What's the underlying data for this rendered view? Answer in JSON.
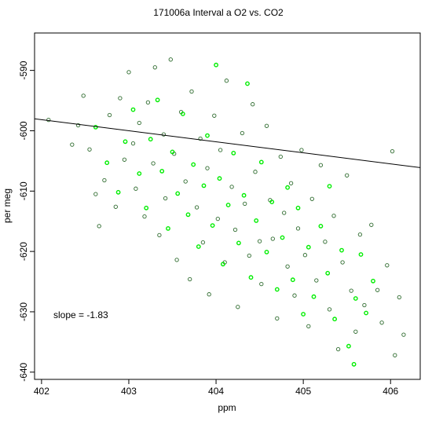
{
  "chart_data": {
    "type": "scatter",
    "title": "171006a   Interval a O2 vs. CO2",
    "xlabel": "ppm",
    "ylabel": "per meg",
    "xlim": [
      401.92,
      406.34
    ],
    "ylim": [
      -641.2,
      -583.8
    ],
    "x_ticks": [
      402,
      403,
      404,
      405,
      406
    ],
    "y_ticks": [
      -590,
      -600,
      -610,
      -620,
      -630,
      -640
    ],
    "x_tick_labels": [
      "402",
      "403",
      "404",
      "405",
      "406"
    ],
    "y_tick_labels": [
      "-590",
      "-600",
      "-610",
      "-620",
      "-630",
      "-640"
    ],
    "annotation": "slope =  -1.83",
    "fit_line": {
      "slope": -1.83,
      "intercept": -600.0,
      "x0": 403.0
    },
    "point_styles": {
      "dark_series_color": "#2e6b2e",
      "green_series_color": "#00ee00",
      "marker": "open-circle"
    },
    "series": [
      {
        "color": "#2e6b2e",
        "points": [
          [
            402.08,
            -598.2
          ],
          [
            402.35,
            -602.3
          ],
          [
            402.42,
            -599.1
          ],
          [
            402.48,
            -594.2
          ],
          [
            402.55,
            -603.1
          ],
          [
            402.62,
            -610.5
          ],
          [
            402.66,
            -615.8
          ],
          [
            402.72,
            -608.2
          ],
          [
            402.78,
            -597.4
          ],
          [
            402.85,
            -612.6
          ],
          [
            402.9,
            -594.6
          ],
          [
            402.95,
            -604.8
          ],
          [
            403.0,
            -590.3
          ],
          [
            403.05,
            -602.1
          ],
          [
            403.08,
            -609.6
          ],
          [
            403.12,
            -598.7
          ],
          [
            403.18,
            -614.2
          ],
          [
            403.22,
            -595.3
          ],
          [
            403.28,
            -605.4
          ],
          [
            403.3,
            -589.5
          ],
          [
            403.35,
            -617.3
          ],
          [
            403.4,
            -600.6
          ],
          [
            403.42,
            -611.2
          ],
          [
            403.48,
            -588.2
          ],
          [
            403.52,
            -603.8
          ],
          [
            403.55,
            -621.4
          ],
          [
            403.6,
            -596.9
          ],
          [
            403.65,
            -608.4
          ],
          [
            403.7,
            -624.6
          ],
          [
            403.72,
            -593.5
          ],
          [
            403.78,
            -612.7
          ],
          [
            403.82,
            -601.3
          ],
          [
            403.85,
            -618.5
          ],
          [
            403.9,
            -606.2
          ],
          [
            403.92,
            -627.1
          ],
          [
            403.98,
            -597.5
          ],
          [
            404.02,
            -614.6
          ],
          [
            404.05,
            -603.2
          ],
          [
            404.1,
            -621.8
          ],
          [
            404.12,
            -591.7
          ],
          [
            404.18,
            -609.3
          ],
          [
            404.22,
            -616.4
          ],
          [
            404.25,
            -629.2
          ],
          [
            404.3,
            -600.4
          ],
          [
            404.33,
            -612.1
          ],
          [
            404.38,
            -620.7
          ],
          [
            404.42,
            -595.6
          ],
          [
            404.45,
            -606.8
          ],
          [
            404.5,
            -618.3
          ],
          [
            404.52,
            -625.4
          ],
          [
            404.58,
            -599.2
          ],
          [
            404.62,
            -611.5
          ],
          [
            404.65,
            -617.9
          ],
          [
            404.7,
            -631.1
          ],
          [
            404.74,
            -604.3
          ],
          [
            404.78,
            -613.6
          ],
          [
            404.82,
            -622.5
          ],
          [
            404.86,
            -608.7
          ],
          [
            404.9,
            -627.3
          ],
          [
            404.94,
            -616.2
          ],
          [
            404.98,
            -603.2
          ],
          [
            405.02,
            -620.6
          ],
          [
            405.06,
            -632.4
          ],
          [
            405.1,
            -611.3
          ],
          [
            405.15,
            -624.8
          ],
          [
            405.2,
            -605.7
          ],
          [
            405.25,
            -618.4
          ],
          [
            405.3,
            -629.6
          ],
          [
            405.35,
            -614.1
          ],
          [
            405.4,
            -636.2
          ],
          [
            405.45,
            -621.8
          ],
          [
            405.5,
            -607.4
          ],
          [
            405.55,
            -626.5
          ],
          [
            405.6,
            -633.3
          ],
          [
            405.65,
            -617.2
          ],
          [
            405.7,
            -628.9
          ],
          [
            405.78,
            -615.6
          ],
          [
            405.85,
            -626.4
          ],
          [
            405.9,
            -631.8
          ],
          [
            405.96,
            -622.3
          ],
          [
            406.02,
            -603.4
          ],
          [
            406.05,
            -637.2
          ],
          [
            406.1,
            -627.6
          ],
          [
            406.15,
            -633.8
          ]
        ]
      },
      {
        "color": "#00ee00",
        "points": [
          [
            402.62,
            -599.4
          ],
          [
            402.75,
            -605.3
          ],
          [
            402.88,
            -610.2
          ],
          [
            402.96,
            -601.8
          ],
          [
            403.05,
            -596.5
          ],
          [
            403.12,
            -607.1
          ],
          [
            403.2,
            -612.8
          ],
          [
            403.25,
            -601.4
          ],
          [
            403.33,
            -594.9
          ],
          [
            403.38,
            -606.7
          ],
          [
            403.45,
            -616.2
          ],
          [
            403.5,
            -603.5
          ],
          [
            403.56,
            -610.4
          ],
          [
            403.62,
            -597.2
          ],
          [
            403.68,
            -613.9
          ],
          [
            403.74,
            -605.6
          ],
          [
            403.8,
            -619.2
          ],
          [
            403.86,
            -609.1
          ],
          [
            403.9,
            -600.8
          ],
          [
            403.96,
            -615.7
          ],
          [
            404.0,
            -589.1
          ],
          [
            404.04,
            -607.9
          ],
          [
            404.08,
            -622.1
          ],
          [
            404.14,
            -612.3
          ],
          [
            404.2,
            -603.7
          ],
          [
            404.26,
            -618.6
          ],
          [
            404.32,
            -610.7
          ],
          [
            404.36,
            -592.2
          ],
          [
            404.4,
            -624.3
          ],
          [
            404.46,
            -614.9
          ],
          [
            404.52,
            -605.2
          ],
          [
            404.58,
            -620.1
          ],
          [
            404.64,
            -611.8
          ],
          [
            404.7,
            -626.3
          ],
          [
            404.76,
            -617.7
          ],
          [
            404.82,
            -609.4
          ],
          [
            404.88,
            -624.7
          ],
          [
            404.94,
            -612.8
          ],
          [
            405.0,
            -630.4
          ],
          [
            405.06,
            -619.3
          ],
          [
            405.12,
            -627.5
          ],
          [
            405.2,
            -615.8
          ],
          [
            405.28,
            -623.6
          ],
          [
            405.36,
            -631.2
          ],
          [
            405.44,
            -619.8
          ],
          [
            405.52,
            -635.7
          ],
          [
            405.6,
            -627.8
          ],
          [
            405.66,
            -620.5
          ],
          [
            405.72,
            -630.2
          ],
          [
            405.8,
            -624.9
          ],
          [
            405.58,
            -638.7
          ],
          [
            405.3,
            -609.2
          ]
        ]
      }
    ]
  }
}
